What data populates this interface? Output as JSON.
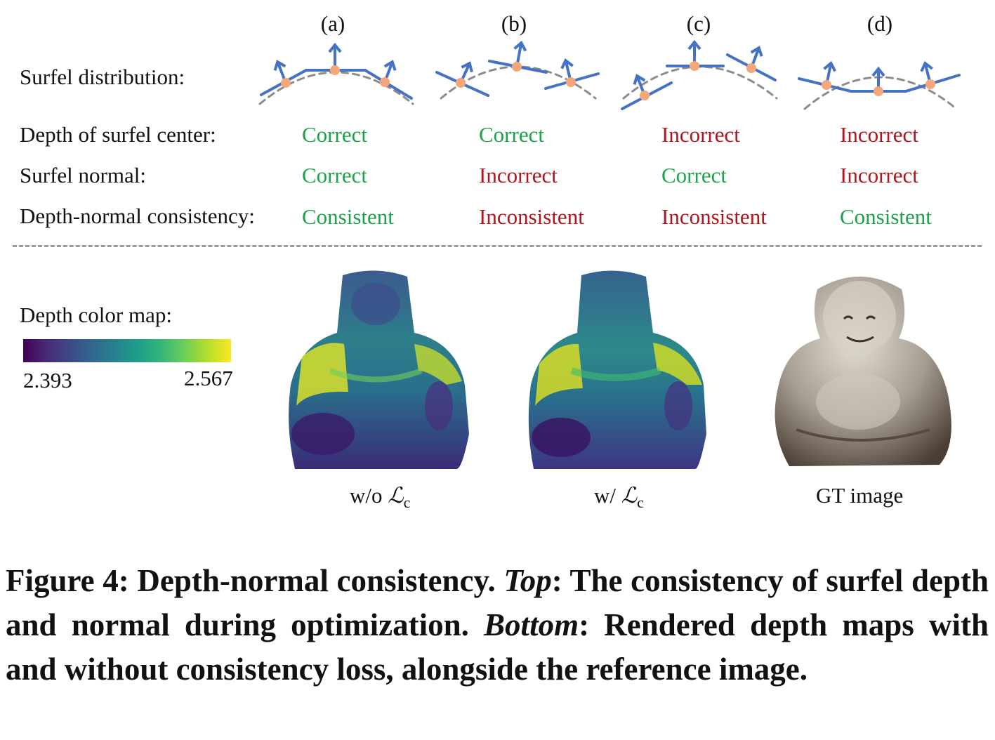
{
  "columns": [
    {
      "label": "(a)",
      "depth": "Correct",
      "normal": "Correct",
      "consistency": "Consistent"
    },
    {
      "label": "(b)",
      "depth": "Correct",
      "normal": "Incorrect",
      "consistency": "Inconsistent"
    },
    {
      "label": "(c)",
      "depth": "Incorrect",
      "normal": "Correct",
      "consistency": "Inconsistent"
    },
    {
      "label": "(d)",
      "depth": "Incorrect",
      "normal": "Incorrect",
      "consistency": "Consistent"
    }
  ],
  "rows": {
    "distribution": "Surfel distribution:",
    "depth": "Depth of surfel center:",
    "normal": "Surfel normal:",
    "consistency": "Depth-normal consistency:"
  },
  "colormap": {
    "label": "Depth color map:",
    "min": "2.393",
    "max": "2.567"
  },
  "images": {
    "without": {
      "prefix": "w/o ",
      "symbol": "ℒ",
      "sub": "c"
    },
    "with": {
      "prefix": "w/ ",
      "symbol": "ℒ",
      "sub": "c"
    },
    "gt": "GT image"
  },
  "caption": {
    "lead": "Figure 4:  Depth-normal consistency. ",
    "top_em": "Top",
    "top_text": ": The consistency of surfel depth and normal during optimization. ",
    "bottom_em": "Bottom",
    "bottom_text": ": Rendered depth maps with and without consistency loss, alongside the reference image."
  },
  "colors": {
    "surfel": "#4472c4",
    "center": "#f4a77a",
    "green": "#1ba34a",
    "red": "#b3141c"
  }
}
